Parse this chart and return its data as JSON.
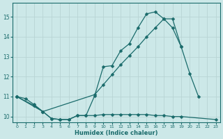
{
  "xlabel": "Humidex (Indice chaleur)",
  "bg_color": "#cce8e8",
  "grid_color": "#b8d4d4",
  "line_color": "#1a6b6b",
  "xlim": [
    -0.5,
    23.5
  ],
  "ylim": [
    9.7,
    15.7
  ],
  "yticks": [
    10,
    11,
    12,
    13,
    14,
    15
  ],
  "xticks": [
    0,
    1,
    2,
    3,
    4,
    5,
    6,
    7,
    8,
    9,
    10,
    11,
    12,
    13,
    14,
    15,
    16,
    17,
    18,
    19,
    20,
    21,
    22,
    23
  ],
  "curve1_x": [
    0,
    1,
    2,
    3,
    4,
    5,
    6,
    7,
    8,
    9,
    10,
    11,
    12,
    13,
    14,
    15,
    16,
    17,
    18,
    19,
    20,
    21
  ],
  "curve1_y": [
    11.0,
    10.9,
    10.6,
    10.25,
    9.9,
    9.85,
    9.85,
    10.05,
    10.05,
    11.05,
    12.5,
    12.55,
    13.3,
    13.65,
    14.45,
    15.15,
    15.25,
    14.9,
    14.9,
    13.5,
    12.15,
    11.0
  ],
  "curve2_x": [
    0,
    2,
    3,
    4,
    5,
    6,
    7,
    8,
    9,
    10,
    11,
    12,
    13,
    14,
    15,
    16,
    17,
    18,
    19,
    23
  ],
  "curve2_y": [
    11.0,
    10.55,
    10.25,
    9.9,
    9.85,
    9.85,
    10.05,
    10.05,
    10.05,
    10.1,
    10.1,
    10.1,
    10.1,
    10.1,
    10.1,
    10.05,
    10.05,
    10.0,
    10.0,
    9.85
  ],
  "curve3_x": [
    0,
    3,
    9,
    10,
    11,
    12,
    13,
    14,
    15,
    16,
    17,
    18,
    19
  ],
  "curve3_y": [
    11.0,
    10.25,
    11.1,
    11.6,
    12.1,
    12.6,
    13.05,
    13.5,
    14.0,
    14.45,
    14.9,
    14.45,
    13.5
  ]
}
